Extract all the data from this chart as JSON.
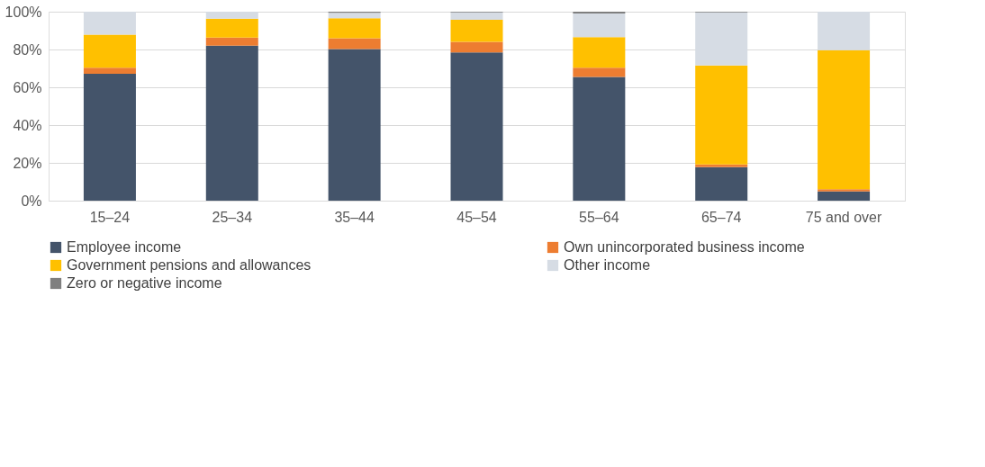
{
  "chart_data": {
    "type": "bar",
    "stacked": true,
    "categories": [
      "15–24",
      "25–34",
      "35–44",
      "45–54",
      "55–64",
      "65–74",
      "75 and over"
    ],
    "series": [
      {
        "name": "Employee income",
        "color": "#44546a",
        "values": [
          67.1,
          82,
          80.2,
          78.4,
          65.5,
          17.7,
          4.9
        ]
      },
      {
        "name": "Own unincorporated business income",
        "color": "#ed7d31",
        "values": [
          3.3,
          4.3,
          5.8,
          5.7,
          4.9,
          1.5,
          1.2
        ]
      },
      {
        "name": "Government pensions and allowances",
        "color": "#ffc000",
        "values": [
          17.4,
          10,
          10.6,
          11.6,
          16.2,
          52.4,
          73.5
        ]
      },
      {
        "name": "Other income",
        "color": "#d6dce4",
        "values": [
          12.2,
          3.7,
          2.8,
          4,
          12.5,
          28.1,
          20.4
        ]
      },
      {
        "name": "Zero or negative income",
        "color": "#7f7f7f",
        "values": [
          0,
          0,
          0.6,
          0.3,
          0.9,
          0.3,
          0
        ]
      }
    ],
    "ylim": [
      0,
      100
    ],
    "yticks": [
      {
        "value": 0,
        "label": "0%"
      },
      {
        "value": 20,
        "label": "20%"
      },
      {
        "value": 40,
        "label": "40%"
      },
      {
        "value": 60,
        "label": "60%"
      },
      {
        "value": 80,
        "label": "80%"
      },
      {
        "value": 100,
        "label": "100%"
      }
    ],
    "grid": "y",
    "legend": "bottom"
  }
}
